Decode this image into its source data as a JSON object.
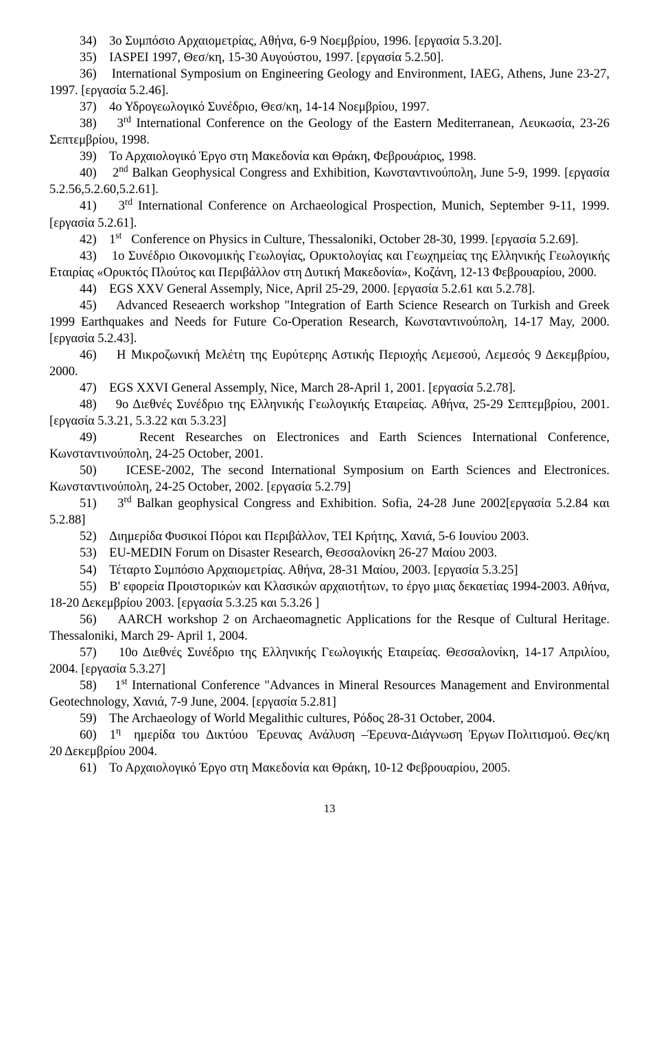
{
  "entries": [
    {
      "html": "34)&nbsp;&nbsp;&nbsp;&nbsp;3ο Συμπόσιο Αρχαιομετρίας, Αθήνα, 6-9 Νοεμβρίου, 1996. [εργασία 5.3.20].",
      "indent": true
    },
    {
      "html": "35)&nbsp;&nbsp;&nbsp;&nbsp;IASPEI 1997, Θεσ/κη, 15-30 Αυγούστου, 1997. [εργασία 5.2.50].",
      "indent": true
    },
    {
      "html": "36)&nbsp;&nbsp;&nbsp;&nbsp;International Symposium on Engineering Geology and Environment, IAEG, Athens, June 23-27, 1997. [εργασία 5.2.46].",
      "indent": true
    },
    {
      "html": "37)&nbsp;&nbsp;&nbsp;&nbsp;4ο Υδρογεωλογικό Συνέδριο, Θεσ/κη, 14-14 Νοεμβρίου, 1997.",
      "indent": true
    },
    {
      "html": "38)&nbsp;&nbsp;&nbsp;&nbsp;3<sup>rd</sup> International Conference on the Geology of the Eastern Mediterranean, Λευκωσία, 23-26 Σεπτεμβρίου, 1998.",
      "indent": true
    },
    {
      "html": "39)&nbsp;&nbsp;&nbsp;&nbsp;Το Αρχαιολογικό Έργο στη Μακεδονία και Θράκη, Φεβρουάριος, 1998.",
      "indent": true
    },
    {
      "html": "40)&nbsp;&nbsp;&nbsp;&nbsp;2<sup>nd</sup> Balkan Geophysical Congress and Exhibition, Κωνσταντινούπολη, June 5-9, 1999. [εργασία 5.2.56,5.2.60,5.2.61].",
      "indent": true
    },
    {
      "html": "41)&nbsp;&nbsp;&nbsp;&nbsp;3<sup>rd</sup> International Conference on Archaeological Prospection, Munich, September 9-11, 1999. [εργασία 5.2.61].",
      "indent": true
    },
    {
      "html": "42)&nbsp;&nbsp;&nbsp;&nbsp;1<sup>st</sup>&nbsp;&nbsp;&nbsp;Conference on Physics in Culture, Thessaloniki, October 28-30, 1999. [εργασία 5.2.69].",
      "indent": true
    },
    {
      "html": "43)&nbsp;&nbsp;&nbsp;&nbsp;1ο Συνέδριο Οικονομικής Γεωλογίας, Ορυκτολογίας και Γεωχημείας της Ελληνικής Γεωλογικής Εταιρίας «Ορυκτός Πλούτος και Περιβάλλον στη Δυτική Μακεδονία», Κοζάνη, 12-13 Φεβρουαρίου, 2000.",
      "indent": true
    },
    {
      "html": "44)&nbsp;&nbsp;&nbsp;&nbsp;EGS XXV General Assemply, Nice, April 25-29, 2000. [εργασία 5.2.61 και 5.2.78].",
      "indent": true
    },
    {
      "html": "45)&nbsp;&nbsp;&nbsp;&nbsp;Advanced Reseaerch workshop \"Integration of Earth Science Research on Turkish and Greek 1999 Earthquakes and Needs for Future Co-Operation Research, Κωνσταντινούπολη, 14-17 May, 2000. [εργασία 5.2.43].",
      "indent": true
    },
    {
      "html": "46)&nbsp;&nbsp;&nbsp;&nbsp;Η Μικροζωνική Μελέτη της Ευρύτερης Αστικής Περιοχής Λεμεσού, Λεμεσός 9 Δεκεμβρίου, 2000.",
      "indent": true
    },
    {
      "html": "47)&nbsp;&nbsp;&nbsp;&nbsp;EGS XXVI General Assemply, Nice, March 28-April 1, 2001. [εργασία 5.2.78].",
      "indent": true
    },
    {
      "html": "48)&nbsp;&nbsp;&nbsp;&nbsp;9ο Διεθνές Συνέδριο της Ελληνικής Γεωλογικής Εταιρείας. Αθήνα, 25-29 Σεπτεμβρίου, 2001. [εργασία 5.3.21, 5.3.22 και 5.3.23]",
      "indent": true
    },
    {
      "html": "49)&nbsp;&nbsp;&nbsp;&nbsp;Recent Researches on Electronices and Earth Sciences International Conference, Κωνσταντινούπολη, 24-25 October, 2001.",
      "indent": true
    },
    {
      "html": "50)&nbsp;&nbsp;&nbsp;&nbsp;ICESE-2002, The second International Symposium on Earth Sciences and Electronices. Κωνσταντινούπολη, 24-25 October, 2002. [εργασία 5.2.79]",
      "indent": true
    },
    {
      "html": "51)&nbsp;&nbsp;&nbsp;&nbsp;3<sup>rd</sup> Balkan geophysical Congress and Exhibition. Sofia, 24-28 June 2002[εργασία 5.2.84 και 5.2.88]",
      "indent": true
    },
    {
      "html": "52)&nbsp;&nbsp;&nbsp;&nbsp;Διημερίδα Φυσικοί Πόροι και Περιβάλλον, ΤΕΙ Κρήτης, Χανιά, 5-6 Ιουνίου 2003.",
      "indent": true
    },
    {
      "html": "53)&nbsp;&nbsp;&nbsp;&nbsp;EU-MEDIN Forum on Disaster Research, Θεσσαλονίκη 26-27 Μαίου 2003.",
      "indent": true
    },
    {
      "html": "54)&nbsp;&nbsp;&nbsp;&nbsp;Τέταρτο Συμπόσιο Αρχαιομετρίας. Αθήνα, 28-31 Μαίου, 2003. [εργασία 5.3.25]",
      "indent": true
    },
    {
      "html": "55)&nbsp;&nbsp;&nbsp;&nbsp;Β' εφορεία Προιστορικών και Κλασικών αρχαιοτήτων, το έργο μιας δεκαετίας 1994-2003. Αθήνα, 18-20 Δεκεμβρίου 2003. [εργασία 5.3.25 και 5.3.26 ]",
      "indent": true
    },
    {
      "html": "56)&nbsp;&nbsp;&nbsp;&nbsp;AARCH workshop 2 on Archaeomagnetic Applications for the Resque of Cultural Heritage. Thessaloniki, March 29- April 1, 2004.",
      "indent": true
    },
    {
      "html": "57)&nbsp;&nbsp;&nbsp;&nbsp;10ο Διεθνές Συνέδριο της Ελληνικής Γεωλογικής Εταιρείας. Θεσσαλονίκη, 14-17 Απριλίου, 2004. [εργασία 5.3.27]",
      "indent": true
    },
    {
      "html": "58)&nbsp;&nbsp;&nbsp;&nbsp;1<sup>st</sup> International Conference \"Advances in Mineral Resources Management and Environmental Geotechnology, Χανιά, 7-9 June, 2004.  [εργασία 5.2.81]",
      "indent": true
    },
    {
      "html": "59)&nbsp;&nbsp;&nbsp;&nbsp;The Archaeology of World Megalithic cultures, Ρόδος 28-31 October, 2004.",
      "indent": true
    },
    {
      "html": "60)&nbsp;&nbsp;&nbsp;&nbsp;1<sup>η</sup>&nbsp;&nbsp;&nbsp;&nbsp;ημερίδα&nbsp;&nbsp;του&nbsp;&nbsp;Δικτύου&nbsp;&nbsp;&nbsp;Έρευνας&nbsp;&nbsp;Ανάλυση&nbsp;&nbsp;–Έρευνα-Διάγνωση&nbsp;&nbsp;Έργων Πολιτισμού. Θες/κη 20 Δεκεμβρίου 2004.",
      "indent": true
    },
    {
      "html": "61)&nbsp;&nbsp;&nbsp;&nbsp;Το Αρχαιολογικό Έργο στη Μακεδονία και Θράκη, 10-12 Φεβρουαρίου, 2005.",
      "indent": true
    }
  ],
  "pageNumber": "13"
}
